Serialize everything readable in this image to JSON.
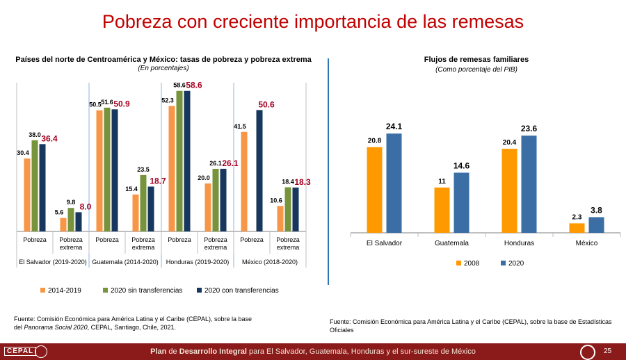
{
  "page": {
    "title": "Pobreza con creciente importancia de las remesas"
  },
  "left_chart": {
    "title": "Países del norte de Centroamérica y México: tasas de pobreza y pobreza extrema",
    "subtitle": "(En porcentajes)",
    "source_line1": "Fuente: Comisión Económica para América Latina y el Caribe (CEPAL),  sobre la base",
    "source_line2_pre": "del ",
    "source_line2_italic": "Panorama Social 2020",
    "source_line2_post": ", CEPAL, Santiago, Chile, 2021."
  },
  "right_chart": {
    "title": "Flujos de remesas familiares",
    "subtitle": "(Como porcentaje del PIB)",
    "source": "Fuente: Comisión Económica para América Latina y el Caribe (CEPAL),  sobre la base de Estadísticas Oficiales"
  },
  "footer": {
    "text_plan": "Plan",
    "text_de": " de ",
    "text_desarrollo": "Desarrollo Integral",
    "text_rest": " para El Salvador, Guatemala, Honduras y el sur-sureste de México",
    "logo_text": "CEPAL",
    "page_number": "25"
  },
  "colors": {
    "orange": "#f79646",
    "green": "#77933c",
    "navy": "#17375e",
    "gold": "#ff9900",
    "blue": "#3a6ea5",
    "red_label": "#a50021"
  },
  "chart_data": [
    {
      "type": "bar",
      "title": "Países del norte de Centroamérica y México: tasas de pobreza y pobreza extrema",
      "ylabel": "",
      "ylim": [
        0,
        62
      ],
      "groups": [
        {
          "name": "El Salvador (2019-2020)",
          "categories": [
            "Pobreza",
            "Pobreza extrema"
          ]
        },
        {
          "name": "Guatemala (2014-2020)",
          "categories": [
            "Pobreza",
            "Pobreza extrema"
          ]
        },
        {
          "name": "Honduras (2019-2020)",
          "categories": [
            "Pobreza",
            "Pobreza extrema"
          ]
        },
        {
          "name": "México (2018-2020)",
          "categories": [
            "Pobreza",
            "Pobreza extrema"
          ]
        }
      ],
      "categories": [
        "Pobreza",
        "Pobreza extrema",
        "Pobreza",
        "Pobreza extrema",
        "Pobreza",
        "Pobreza extrema",
        "Pobreza",
        "Pobreza extrema"
      ],
      "series": [
        {
          "name": "2014-2019",
          "values": [
            30.4,
            5.6,
            50.5,
            15.4,
            52.3,
            20.0,
            41.5,
            10.6
          ]
        },
        {
          "name": "2020 sin transferencias",
          "values": [
            38.0,
            9.8,
            51.6,
            23.5,
            58.6,
            26.1,
            null,
            18.4
          ]
        },
        {
          "name": "2020 con transferencias",
          "values": [
            36.4,
            8.0,
            50.9,
            18.7,
            58.6,
            26.1,
            50.6,
            18.3
          ]
        }
      ],
      "labels": {
        "s0": [
          "30.4",
          "5.6",
          "50.5",
          "15.4",
          "52.3",
          "20.0",
          "41.5",
          "10.6"
        ],
        "s1": [
          "38.0",
          "9.8",
          "51.6",
          "23.5",
          "58.6",
          "26.1",
          "",
          "18.4"
        ],
        "s2": [
          "36.4",
          "8.0",
          "50.9",
          "18.7",
          "58.6",
          "26.1",
          "50.6",
          "18.3"
        ]
      },
      "legend": "bottom"
    },
    {
      "type": "bar",
      "title": "Flujos de remesas familiares",
      "ylabel": "",
      "ylim": [
        0,
        27
      ],
      "categories": [
        "El Salvador",
        "Guatemala",
        "Honduras",
        "México"
      ],
      "series": [
        {
          "name": "2008",
          "values": [
            20.8,
            11,
            20.4,
            2.3
          ]
        },
        {
          "name": "2020",
          "values": [
            24.1,
            14.6,
            23.6,
            3.8
          ]
        }
      ],
      "labels": {
        "s0": [
          "20.8",
          "11",
          "20.4",
          "2.3"
        ],
        "s1": [
          "24.1",
          "14.6",
          "23.6",
          "3.8"
        ]
      },
      "legend": "bottom"
    }
  ]
}
